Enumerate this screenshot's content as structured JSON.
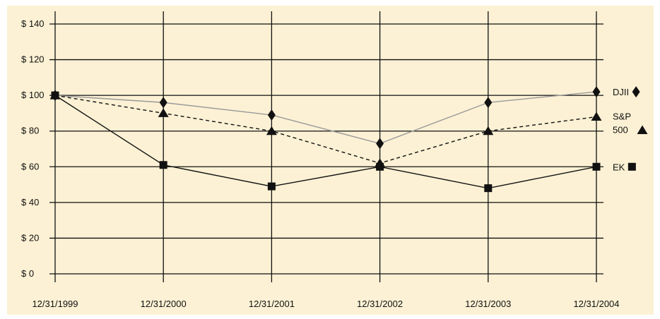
{
  "chart_data": {
    "type": "line",
    "title": "",
    "xlabel": "",
    "ylabel": "",
    "categories": [
      "12/31/1999",
      "12/31/2000",
      "12/31/2001",
      "12/31/2002",
      "12/31/2003",
      "12/31/2004"
    ],
    "y_ticks": [
      "$ 140",
      "$ 120",
      "$ 100",
      "$ 80",
      "$ 60",
      "$ 40",
      "$ 20",
      "$ 0"
    ],
    "y_tick_values": [
      140,
      120,
      100,
      80,
      60,
      40,
      20,
      0
    ],
    "ylim": [
      0,
      140
    ],
    "grid": true,
    "legend_placement": "right, beside line ends",
    "series": [
      {
        "name": "DJII",
        "marker": "diamond",
        "line": "solid",
        "color": "#9a9a9a",
        "values": [
          100,
          96,
          89,
          73,
          96,
          102
        ]
      },
      {
        "name": "S&P 500",
        "label_lines": [
          "S&P",
          "500"
        ],
        "marker": "triangle",
        "line": "dashed",
        "color": "#111111",
        "values": [
          100,
          90,
          80,
          62,
          80,
          88
        ]
      },
      {
        "name": "EK",
        "marker": "square",
        "line": "solid",
        "color": "#111111",
        "values": [
          100,
          61,
          49,
          60,
          48,
          60
        ]
      }
    ]
  }
}
